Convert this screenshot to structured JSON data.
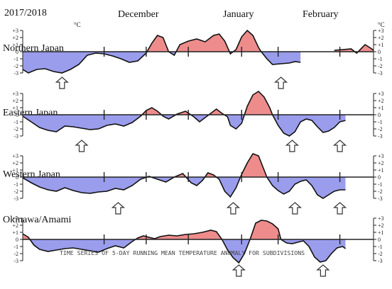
{
  "season_label": "2017/2018",
  "unit_label": "°C",
  "months": [
    "December",
    "January",
    "February"
  ],
  "caption": "TIME SERIES OF 5-DAY RUNNING MEAN TEMPERATURE ANOMALY FOR SUBDIVISIONS",
  "colors": {
    "positive": "#ee8c8c",
    "negative": "#9a9cec",
    "line": "#111111",
    "frame": "#222222"
  },
  "chart_data": [
    {
      "type": "area",
      "title": "Northern Japan",
      "ylim": [
        -3,
        3
      ],
      "yticks": [
        "+3",
        "+2",
        "+1",
        "0",
        "-1",
        "-2",
        "-3"
      ],
      "x_domain": [
        1,
        100
      ],
      "x_unit": "day since Nov 26",
      "series": [
        {
          "values": [
            [
              1,
              -2.5
            ],
            [
              3,
              -3
            ],
            [
              6,
              -2.5
            ],
            [
              9,
              -2.4
            ],
            [
              12,
              -2.8
            ],
            [
              15,
              -3
            ],
            [
              18,
              -2.5
            ],
            [
              21,
              -1.8
            ],
            [
              24,
              -0.5
            ],
            [
              27,
              -0.2
            ],
            [
              30,
              -0.3
            ],
            [
              33,
              -0.6
            ],
            [
              36,
              -1.0
            ],
            [
              39,
              -1.5
            ],
            [
              42,
              -1.3
            ],
            [
              45,
              -0.2
            ],
            [
              47,
              1.2
            ],
            [
              49,
              2.3
            ],
            [
              51,
              2.0
            ],
            [
              53,
              0.0
            ],
            [
              55,
              -0.5
            ],
            [
              57,
              1.0
            ],
            [
              60,
              1.5
            ],
            [
              63,
              1.8
            ],
            [
              66,
              1.4
            ],
            [
              69,
              2.3
            ],
            [
              71,
              2.5
            ],
            [
              73,
              1.5
            ],
            [
              75,
              -0.3
            ],
            [
              77,
              0.3
            ],
            [
              79,
              2.1
            ],
            [
              81,
              3.0
            ],
            [
              83,
              2.3
            ],
            [
              85,
              0.6
            ],
            [
              86,
              0.0
            ],
            [
              88,
              -1.0
            ],
            [
              90,
              -1.8
            ],
            [
              93,
              -1.7
            ],
            [
              96,
              -1.6
            ],
            [
              98,
              -1.4
            ],
            [
              100,
              -1.5
            ]
          ]
        }
      ],
      "series_b": [
        {
          "values": [
            [
              112,
              0.2
            ],
            [
              115,
              0.3
            ],
            [
              118,
              0.4
            ],
            [
              120,
              -0.2
            ],
            [
              123,
              1.0
            ],
            [
              125,
              0.5
            ],
            [
              126,
              0.2
            ]
          ]
        }
      ],
      "markers": [
        15,
        93
      ]
    },
    {
      "type": "area",
      "title": "Eastern Japan",
      "ylim": [
        -3,
        3
      ],
      "yticks": [
        "+3",
        "+2",
        "+1",
        "0",
        "-1",
        "-2",
        "-3"
      ],
      "series": [
        {
          "values": [
            [
              1,
              -0.2
            ],
            [
              4,
              -1.0
            ],
            [
              7,
              -1.8
            ],
            [
              10,
              -2.2
            ],
            [
              13,
              -2.4
            ],
            [
              16,
              -1.6
            ],
            [
              19,
              -1.7
            ],
            [
              22,
              -1.9
            ],
            [
              25,
              -2.1
            ],
            [
              28,
              -2.0
            ],
            [
              31,
              -1.5
            ],
            [
              34,
              -1.3
            ],
            [
              37,
              -1.6
            ],
            [
              40,
              -1.1
            ],
            [
              43,
              -0.2
            ],
            [
              45,
              0.6
            ],
            [
              47,
              1.0
            ],
            [
              49,
              0.5
            ],
            [
              51,
              -0.2
            ],
            [
              53,
              -0.6
            ],
            [
              56,
              0.1
            ],
            [
              59,
              0.5
            ],
            [
              62,
              -0.3
            ],
            [
              64,
              -1.0
            ],
            [
              66,
              -0.4
            ],
            [
              68,
              0.2
            ],
            [
              70,
              0.8
            ],
            [
              72,
              0.2
            ],
            [
              74,
              -0.3
            ],
            [
              75,
              -1.5
            ],
            [
              77,
              -2.0
            ],
            [
              79,
              -1.2
            ],
            [
              81,
              1.2
            ],
            [
              83,
              2.8
            ],
            [
              85,
              3.3
            ],
            [
              87,
              2.5
            ],
            [
              89,
              1.0
            ],
            [
              90,
              0.0
            ],
            [
              92,
              -1.5
            ],
            [
              94,
              -2.6
            ],
            [
              96,
              -3.0
            ],
            [
              98,
              -2.4
            ],
            [
              100,
              -1.0
            ],
            [
              102,
              -0.6
            ],
            [
              104,
              -0.8
            ],
            [
              106,
              -1.7
            ],
            [
              108,
              -2.5
            ],
            [
              110,
              -2.3
            ],
            [
              112,
              -1.8
            ],
            [
              114,
              -1.0
            ],
            [
              116,
              -0.8
            ]
          ]
        }
      ],
      "markers": [
        22,
        97,
        114
      ]
    },
    {
      "type": "area",
      "title": "Western Japan",
      "ylim": [
        -3,
        3
      ],
      "yticks": [
        "+3",
        "+2",
        "+1",
        "0",
        "-1",
        "-2",
        "-3"
      ],
      "series": [
        {
          "values": [
            [
              1,
              -0.1
            ],
            [
              4,
              -0.8
            ],
            [
              7,
              -1.4
            ],
            [
              10,
              -1.8
            ],
            [
              13,
              -2.0
            ],
            [
              16,
              -1.5
            ],
            [
              19,
              -1.9
            ],
            [
              22,
              -2.2
            ],
            [
              25,
              -2.3
            ],
            [
              28,
              -2.1
            ],
            [
              31,
              -2.0
            ],
            [
              34,
              -1.6
            ],
            [
              37,
              -1.8
            ],
            [
              40,
              -1.2
            ],
            [
              43,
              -0.3
            ],
            [
              46,
              0.1
            ],
            [
              49,
              -0.3
            ],
            [
              52,
              -0.7
            ],
            [
              55,
              0.0
            ],
            [
              58,
              0.5
            ],
            [
              61,
              -0.8
            ],
            [
              63,
              -1.2
            ],
            [
              65,
              -0.5
            ],
            [
              67,
              0.6
            ],
            [
              69,
              0.3
            ],
            [
              71,
              -0.3
            ],
            [
              73,
              -2.0
            ],
            [
              75,
              -2.8
            ],
            [
              77,
              -1.5
            ],
            [
              79,
              0.4
            ],
            [
              81,
              2.0
            ],
            [
              83,
              3.3
            ],
            [
              85,
              3.0
            ],
            [
              87,
              1.0
            ],
            [
              88,
              0.0
            ],
            [
              90,
              -1.2
            ],
            [
              92,
              -1.9
            ],
            [
              94,
              -2.4
            ],
            [
              96,
              -2.0
            ],
            [
              98,
              -1.0
            ],
            [
              100,
              -0.6
            ],
            [
              102,
              -0.4
            ],
            [
              104,
              -1.2
            ],
            [
              106,
              -2.5
            ],
            [
              108,
              -3.0
            ],
            [
              110,
              -2.5
            ],
            [
              112,
              -2.0
            ],
            [
              114,
              -1.8
            ],
            [
              116,
              -1.8
            ]
          ]
        }
      ],
      "markers": [
        35,
        76,
        98,
        114
      ]
    },
    {
      "type": "area",
      "title": "Okinawa/Amami",
      "ylim": [
        -3,
        3
      ],
      "yticks": [
        "+3",
        "+2",
        "+1",
        "0",
        "-1",
        "-2",
        "-3"
      ],
      "series": [
        {
          "values": [
            [
              1,
              0.8
            ],
            [
              3,
              0.3
            ],
            [
              5,
              -0.8
            ],
            [
              7,
              -1.4
            ],
            [
              10,
              -1.7
            ],
            [
              13,
              -1.5
            ],
            [
              16,
              -1.3
            ],
            [
              19,
              -1.2
            ],
            [
              22,
              -1.4
            ],
            [
              25,
              -1.6
            ],
            [
              28,
              -1.8
            ],
            [
              31,
              -1.3
            ],
            [
              34,
              -0.9
            ],
            [
              37,
              -1.2
            ],
            [
              40,
              -0.3
            ],
            [
              42,
              0.2
            ],
            [
              44,
              0.5
            ],
            [
              46,
              0.3
            ],
            [
              48,
              0.1
            ],
            [
              50,
              0.4
            ],
            [
              53,
              0.6
            ],
            [
              56,
              0.5
            ],
            [
              59,
              0.7
            ],
            [
              62,
              0.8
            ],
            [
              65,
              1.0
            ],
            [
              68,
              1.3
            ],
            [
              70,
              1.1
            ],
            [
              72,
              0.0
            ],
            [
              74,
              -1.5
            ],
            [
              76,
              -2.6
            ],
            [
              78,
              -3.3
            ],
            [
              80,
              -2.0
            ],
            [
              82,
              0.0
            ],
            [
              84,
              2.3
            ],
            [
              86,
              2.7
            ],
            [
              88,
              2.6
            ],
            [
              90,
              2.2
            ],
            [
              92,
              1.5
            ],
            [
              93,
              0.0
            ],
            [
              95,
              -0.5
            ],
            [
              97,
              -0.6
            ],
            [
              99,
              -0.4
            ],
            [
              101,
              -0.2
            ],
            [
              103,
              -1.0
            ],
            [
              105,
              -2.5
            ],
            [
              107,
              -3.2
            ],
            [
              109,
              -3.0
            ],
            [
              111,
              -2.0
            ],
            [
              113,
              -1.2
            ],
            [
              115,
              -1.0
            ],
            [
              116,
              -1.3
            ]
          ]
        }
      ],
      "markers": [
        78,
        108
      ]
    }
  ]
}
